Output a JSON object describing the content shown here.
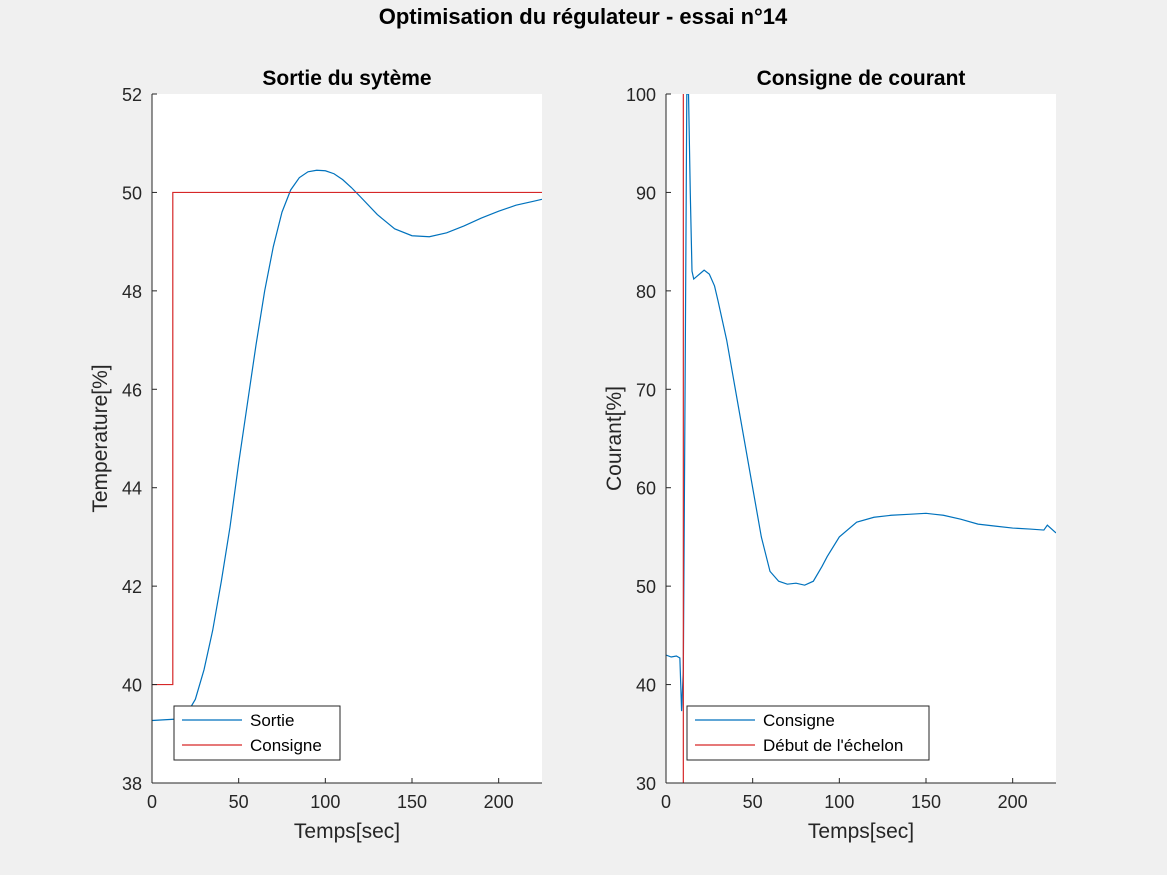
{
  "figure": {
    "title": "Optimisation du régulateur - essai n°14"
  },
  "colors": {
    "background": "#f0f0f0",
    "axes_bg": "#ffffff",
    "blue": "#0072bd",
    "red": "#d62728"
  },
  "chart_data": [
    {
      "type": "line",
      "title": "Sortie du sytème",
      "xlabel": "Temps[sec]",
      "ylabel": "Temperature[%]",
      "xlim": [
        0,
        225
      ],
      "ylim": [
        38,
        52
      ],
      "xticks": [
        0,
        50,
        100,
        150,
        200
      ],
      "yticks": [
        38,
        40,
        42,
        44,
        46,
        48,
        50,
        52
      ],
      "grid": false,
      "legend_position": "bottom-left",
      "series": [
        {
          "name": "Sortie",
          "color": "#0072bd",
          "x": [
            0,
            5,
            10,
            15,
            20,
            25,
            30,
            35,
            40,
            45,
            50,
            55,
            60,
            65,
            70,
            75,
            80,
            85,
            90,
            95,
            100,
            105,
            110,
            115,
            120,
            130,
            140,
            150,
            160,
            170,
            180,
            190,
            200,
            210,
            220,
            225
          ],
          "y": [
            39.27,
            39.28,
            39.29,
            39.3,
            39.4,
            39.7,
            40.3,
            41.1,
            42.1,
            43.2,
            44.5,
            45.7,
            46.9,
            48.0,
            48.9,
            49.6,
            50.05,
            50.3,
            50.42,
            50.45,
            50.44,
            50.38,
            50.26,
            50.1,
            49.92,
            49.55,
            49.26,
            49.12,
            49.1,
            49.18,
            49.32,
            49.48,
            49.62,
            49.74,
            49.82,
            49.86
          ]
        },
        {
          "name": "Consigne",
          "color": "#d62728",
          "x": [
            0,
            12,
            12,
            225
          ],
          "y": [
            40,
            40,
            50,
            50
          ]
        }
      ]
    },
    {
      "type": "line",
      "title": "Consigne de courant",
      "xlabel": "Temps[sec]",
      "ylabel": "Courant[%]",
      "xlim": [
        0,
        225
      ],
      "ylim": [
        30,
        100
      ],
      "xticks": [
        0,
        50,
        100,
        150,
        200
      ],
      "yticks": [
        30,
        40,
        50,
        60,
        70,
        80,
        90,
        100
      ],
      "grid": false,
      "legend_position": "bottom-left",
      "series": [
        {
          "name": "Consigne",
          "color": "#0072bd",
          "x": [
            0,
            3,
            6,
            8,
            9,
            10,
            11,
            12,
            13,
            14,
            15,
            16,
            18,
            20,
            22,
            25,
            28,
            30,
            35,
            40,
            45,
            50,
            55,
            60,
            65,
            70,
            75,
            80,
            85,
            90,
            93,
            100,
            110,
            120,
            130,
            140,
            150,
            155,
            160,
            170,
            180,
            190,
            200,
            210,
            218,
            220,
            225
          ],
          "y": [
            43,
            42.8,
            42.9,
            42.7,
            37.3,
            41.5,
            70,
            100,
            100,
            90,
            82,
            81.2,
            81.5,
            81.8,
            82.1,
            81.7,
            80.5,
            79,
            75,
            70,
            65,
            60,
            55,
            51.5,
            50.5,
            50.2,
            50.3,
            50.1,
            50.5,
            52,
            53,
            55,
            56.5,
            57,
            57.2,
            57.3,
            57.4,
            57.3,
            57.2,
            56.8,
            56.3,
            56.1,
            55.9,
            55.8,
            55.7,
            56.2,
            55.4
          ]
        },
        {
          "name": "Début de l'échelon",
          "color": "#d62728",
          "x": [
            10,
            10
          ],
          "y": [
            30,
            100
          ]
        }
      ]
    }
  ]
}
